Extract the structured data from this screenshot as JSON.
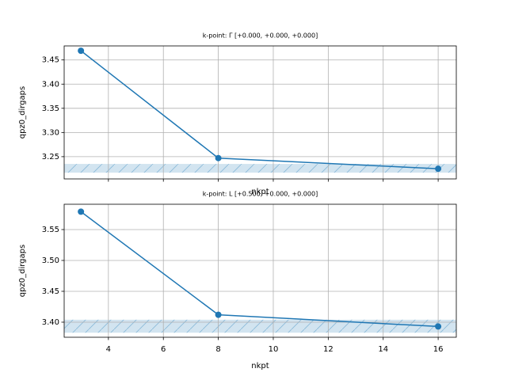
{
  "chart_data": [
    {
      "type": "line",
      "title": "k-point: Γ [+0.000, +0.000, +0.000]",
      "x_label": "nkpt",
      "y_label": "qpz0_dirgaps",
      "x": [
        3,
        8,
        16
      ],
      "values": [
        3.469,
        3.247,
        3.225
      ],
      "color": "#1f77b4",
      "band": [
        3.217,
        3.235
      ],
      "xlim": [
        2.39,
        16.66
      ],
      "ylim": [
        3.204,
        3.479
      ],
      "xticks": [
        4,
        6,
        8,
        10,
        12,
        14,
        16
      ],
      "yticks": [
        3.25,
        3.3,
        3.35,
        3.4,
        3.45
      ],
      "show_xtick_labels": false,
      "grid": true
    },
    {
      "type": "line",
      "title": "k-point: L [+0.500, +0.000, +0.000]",
      "x_label": "nkpt",
      "y_label": "qpz0_dirgaps",
      "x": [
        3,
        8,
        16
      ],
      "values": [
        3.579,
        3.412,
        3.393
      ],
      "color": "#1f77b4",
      "band": [
        3.383,
        3.404
      ],
      "xlim": [
        2.39,
        16.66
      ],
      "ylim": [
        3.3756,
        3.591
      ],
      "xticks": [
        4,
        6,
        8,
        10,
        12,
        14,
        16
      ],
      "yticks": [
        3.4,
        3.45,
        3.5,
        3.55
      ],
      "show_xtick_labels": true,
      "grid": true
    }
  ]
}
